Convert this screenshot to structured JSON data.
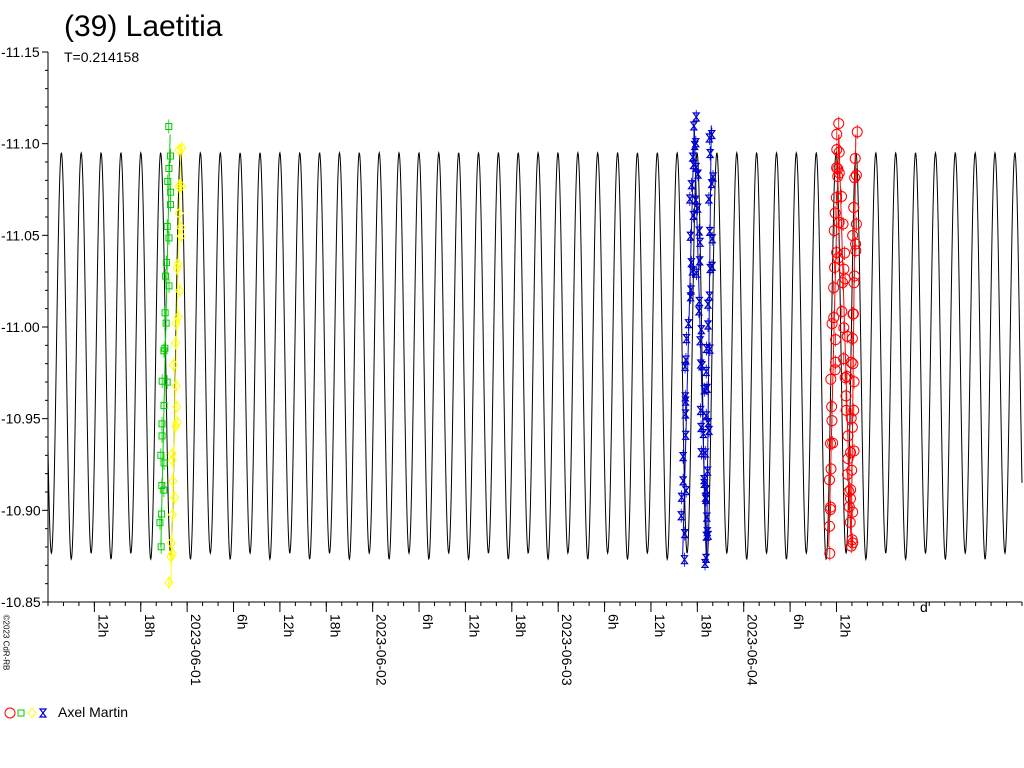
{
  "chart_data": {
    "type": "scatter",
    "title": "(39) Laetitia",
    "subtitle": "T=0.214158",
    "credit": "©2023 CdR-RB",
    "legend_label": "Axel Martin",
    "y_inverted": true,
    "ylim": [
      -10.85,
      -11.15
    ],
    "yticks": [
      "-11.15",
      "-11.10",
      "-11.05",
      "-11.00",
      "-10.95",
      "-10.90",
      "-10.85"
    ],
    "yvalues": [
      -11.15,
      -11.1,
      -11.05,
      -11.0,
      -10.95,
      -10.9,
      -10.85
    ],
    "period_hours": 5.13979,
    "model_center": -10.985,
    "model_amplitude": 0.11,
    "xlim_hours": [
      6,
      132
    ],
    "xticks": [
      {
        "label": "12h",
        "hour": 12
      },
      {
        "label": "18h",
        "hour": 18
      },
      {
        "label": "2023-06-01",
        "hour": 24
      },
      {
        "label": "6h",
        "hour": 30
      },
      {
        "label": "12h",
        "hour": 36
      },
      {
        "label": "18h",
        "hour": 42
      },
      {
        "label": "2023-06-02",
        "hour": 48
      },
      {
        "label": "6h",
        "hour": 54
      },
      {
        "label": "12h",
        "hour": 60
      },
      {
        "label": "18h",
        "hour": 66
      },
      {
        "label": "2023-06-03",
        "hour": 72
      },
      {
        "label": "6h",
        "hour": 78
      },
      {
        "label": "12h",
        "hour": 84
      },
      {
        "label": "18h",
        "hour": 90
      },
      {
        "label": "2023-06-04",
        "hour": 96
      },
      {
        "label": "6h",
        "hour": 102
      },
      {
        "label": "12h",
        "hour": 108
      }
    ],
    "axis_marker": "d",
    "series": [
      {
        "symbol": "square",
        "color": "#00cc00",
        "hours": [
          20.6,
          21.8
        ],
        "mag_range": [
          -10.88,
          -11.105
        ]
      },
      {
        "symbol": "diamond",
        "color": "#ffff00",
        "hours": [
          21.9,
          23.2
        ],
        "mag_range": [
          -11.1,
          -10.86
        ]
      },
      {
        "symbol": "hourglass",
        "color": "#0000cc",
        "hours": [
          88.1,
          89.6,
          91.2
        ],
        "mag_range": [
          -10.875,
          -11.11
        ]
      },
      {
        "symbol": "circle",
        "color": "#ff0000",
        "hours": [
          107.0,
          108.3,
          109.9
        ],
        "mag_range": [
          -10.88,
          -11.105
        ]
      }
    ],
    "colors": {
      "model_curve": "#000000",
      "red": "#ff0000",
      "green": "#00cc00",
      "yellow": "#ffff00",
      "blue": "#0000cc"
    }
  }
}
